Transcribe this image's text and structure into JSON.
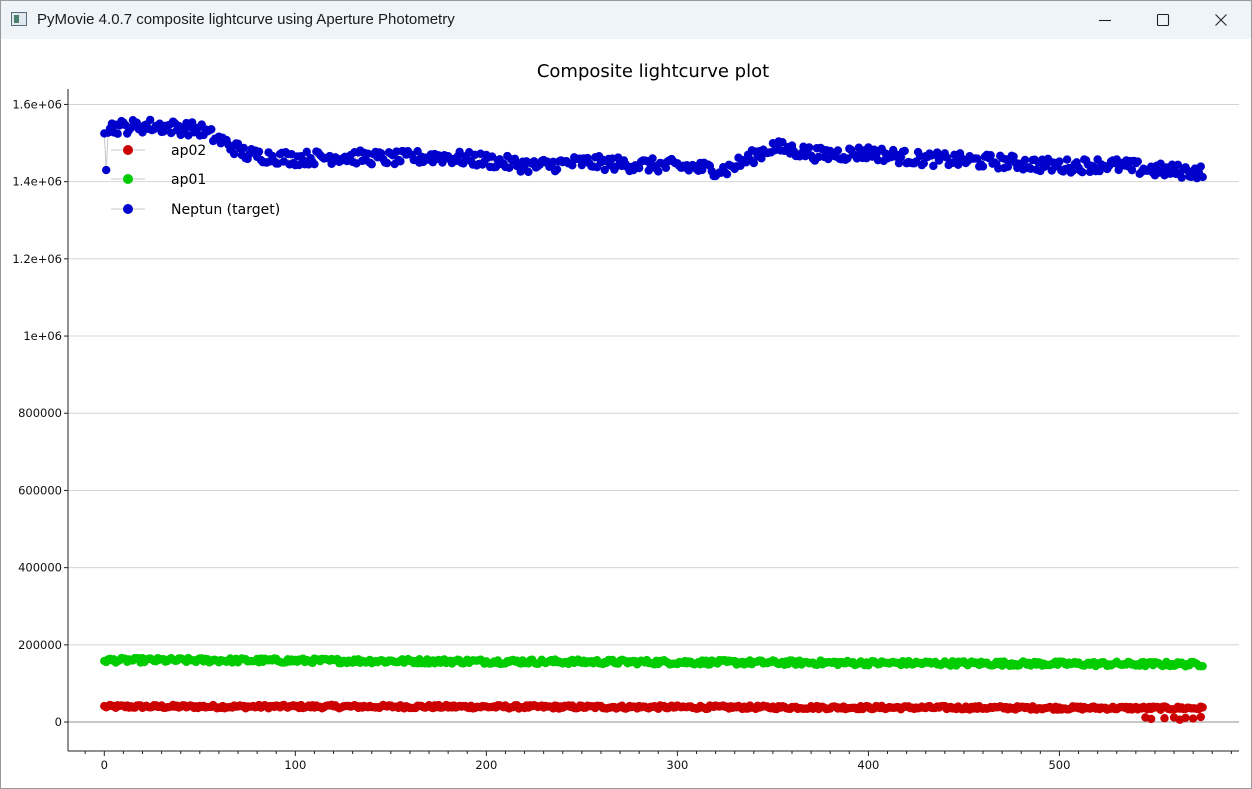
{
  "window": {
    "title": "PyMovie 4.0.7 composite lightcurve using Aperture Photometry",
    "icon": "app-window-icon",
    "controls": [
      "minimize-icon",
      "maximize-icon",
      "close-icon"
    ]
  },
  "chart_data": {
    "type": "scatter",
    "title": "Composite lightcurve plot",
    "xlabel": "",
    "ylabel": "",
    "xlim": [
      -19,
      594
    ],
    "ylim": [
      -75000,
      1640000
    ],
    "x_ticks": [
      0,
      100,
      200,
      300,
      400,
      500
    ],
    "y_ticks": [
      {
        "value": 0,
        "label": "0"
      },
      {
        "value": 200000,
        "label": "200000"
      },
      {
        "value": 400000,
        "label": "400000"
      },
      {
        "value": 600000,
        "label": "600000"
      },
      {
        "value": 800000,
        "label": "800000"
      },
      {
        "value": 1000000,
        "label": "1e+06"
      },
      {
        "value": 1200000,
        "label": "1.2e+06"
      },
      {
        "value": 1400000,
        "label": "1.4e+06"
      },
      {
        "value": 1600000,
        "label": "1.6e+06"
      }
    ],
    "grid": "horizontal",
    "legend_position": "top-left",
    "series": [
      {
        "name": "ap02",
        "color": "#cc0000",
        "x_range": [
          0,
          575
        ],
        "values_by_50": [
          40000,
          40000,
          40000,
          40000,
          39500,
          39000,
          38500,
          38000,
          37500,
          37000,
          36500,
          36000
        ],
        "low_outliers": [
          [
            545,
            12000
          ],
          [
            548,
            8000
          ],
          [
            555,
            10000
          ],
          [
            560,
            12000
          ],
          [
            563,
            6000
          ],
          [
            566,
            11000
          ],
          [
            570,
            9000
          ],
          [
            574,
            13000
          ]
        ]
      },
      {
        "name": "ap01",
        "color": "#00cc00",
        "x_range": [
          0,
          575
        ],
        "values_by_50": [
          160000,
          160000,
          159000,
          158000,
          157000,
          156000,
          155000,
          154000,
          153000,
          152000,
          151000,
          150000
        ]
      },
      {
        "name": "Neptun (target)",
        "color": "#0000cc",
        "x_range": [
          0,
          575
        ],
        "values_by_25": [
          1540000,
          1545000,
          1535000,
          1470000,
          1460000,
          1465000,
          1460000,
          1465000,
          1455000,
          1440000,
          1450000,
          1445000,
          1440000,
          1430000,
          1490000,
          1470000,
          1475000,
          1460000,
          1455000,
          1450000,
          1440000,
          1445000,
          1430000,
          1425000
        ]
      }
    ]
  }
}
